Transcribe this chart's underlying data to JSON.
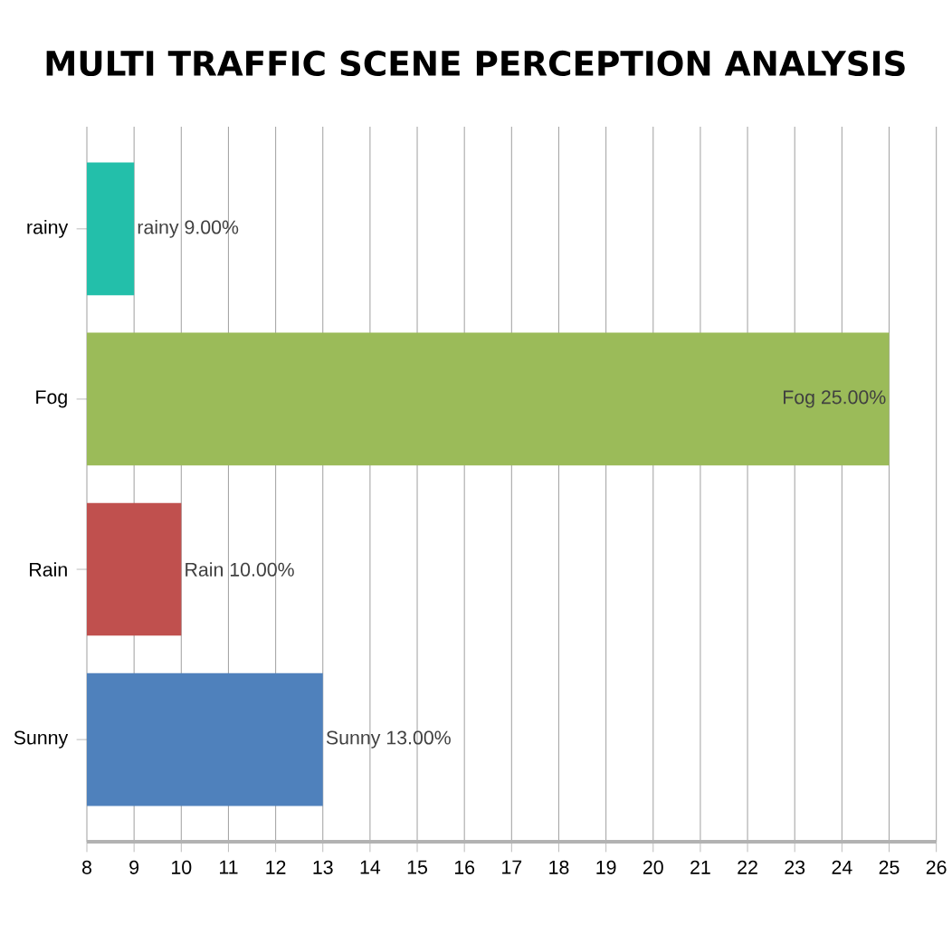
{
  "chart_data": {
    "type": "bar",
    "orientation": "horizontal",
    "title": "MULTI TRAFFIC SCENE PERCEPTION ANALYSIS",
    "categories": [
      "rainy",
      "Fog",
      "Rain",
      "Sunny"
    ],
    "values": [
      9,
      25,
      10,
      13
    ],
    "colors": [
      "#23bfaa",
      "#9bbb59",
      "#c0504e",
      "#4f81bc"
    ],
    "value_labels": [
      "rainy 9.00%",
      "Fog 25.00%",
      "Rain 10.00%",
      "Sunny 13.00%"
    ],
    "xlim": [
      8,
      26
    ],
    "xticks": [
      8,
      9,
      10,
      11,
      12,
      13,
      14,
      15,
      16,
      17,
      18,
      19,
      20,
      21,
      22,
      23,
      24,
      25,
      26
    ],
    "grid": "x"
  }
}
